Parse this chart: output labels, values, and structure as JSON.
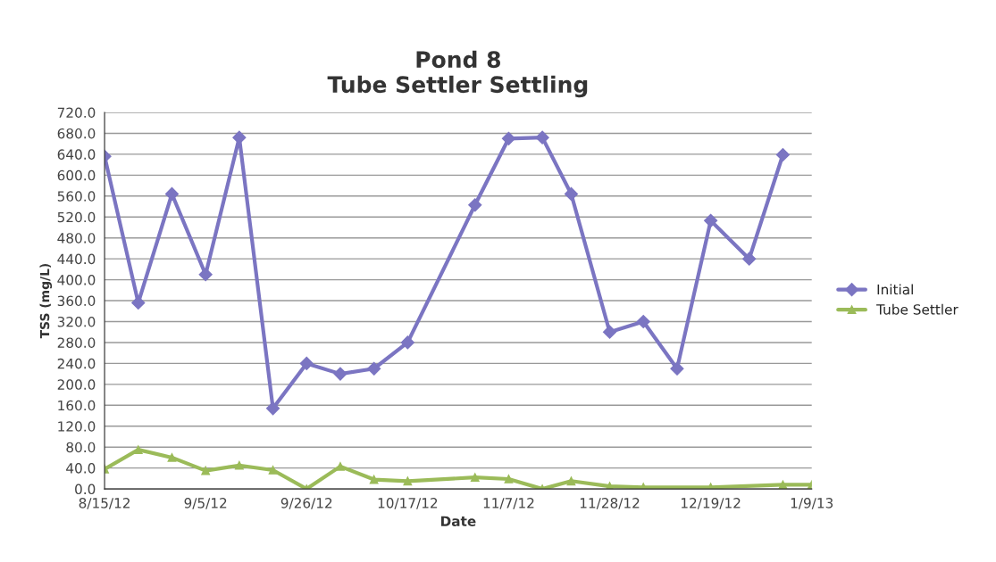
{
  "chart_data": {
    "type": "line",
    "title": "Pond 8\nTube Settler Settling",
    "xlabel": "Date",
    "ylabel": "TSS (mg/L)",
    "series": [
      {
        "name": "Initial",
        "color": "#7b75c2",
        "marker": "diamond",
        "x": [
          "2012-08-15",
          "2012-08-22",
          "2012-08-29",
          "2012-09-05",
          "2012-09-12",
          "2012-09-19",
          "2012-09-26",
          "2012-10-03",
          "2012-10-10",
          "2012-10-17",
          "2012-10-31",
          "2012-11-07",
          "2012-11-14",
          "2012-11-20",
          "2012-11-28",
          "2012-12-05",
          "2012-12-12",
          "2012-12-19",
          "2012-12-27",
          "2013-01-03"
        ],
        "values": [
          636,
          356,
          564,
          410,
          672,
          154,
          240,
          220,
          230,
          280,
          543,
          670,
          672,
          564,
          300,
          320,
          230,
          513,
          440,
          639
        ]
      },
      {
        "name": "Tube Settler",
        "color": "#9bbb59",
        "marker": "triangle",
        "x": [
          "2012-08-15",
          "2012-08-22",
          "2012-08-29",
          "2012-09-05",
          "2012-09-12",
          "2012-09-19",
          "2012-09-26",
          "2012-10-03",
          "2012-10-10",
          "2012-10-17",
          "2012-10-31",
          "2012-11-07",
          "2012-11-14",
          "2012-11-20",
          "2012-11-28",
          "2012-12-05",
          "2012-12-19",
          "2013-01-03",
          "2013-01-09"
        ],
        "values": [
          38,
          75,
          60,
          35,
          45,
          36,
          0,
          43,
          18,
          15,
          22,
          19,
          0,
          15,
          5,
          3,
          3,
          8,
          8
        ]
      }
    ],
    "xlim": [
      "2012-08-15",
      "2013-01-09"
    ],
    "xticks": [
      {
        "value": "2012-08-15",
        "label": "8/15/12"
      },
      {
        "value": "2012-09-05",
        "label": "9/5/12"
      },
      {
        "value": "2012-09-26",
        "label": "9/26/12"
      },
      {
        "value": "2012-10-17",
        "label": "10/17/12"
      },
      {
        "value": "2012-11-07",
        "label": "11/7/12"
      },
      {
        "value": "2012-11-28",
        "label": "11/28/12"
      },
      {
        "value": "2012-12-19",
        "label": "12/19/12"
      },
      {
        "value": "2013-01-09",
        "label": "1/9/13"
      }
    ],
    "ylim": [
      0,
      720
    ],
    "yticks": [
      {
        "value": 0,
        "label": "0.0"
      },
      {
        "value": 40,
        "label": "40.0"
      },
      {
        "value": 80,
        "label": "80.0"
      },
      {
        "value": 120,
        "label": "120.0"
      },
      {
        "value": 160,
        "label": "160.0"
      },
      {
        "value": 200,
        "label": "200.0"
      },
      {
        "value": 240,
        "label": "240.0"
      },
      {
        "value": 280,
        "label": "280.0"
      },
      {
        "value": 320,
        "label": "320.0"
      },
      {
        "value": 360,
        "label": "360.0"
      },
      {
        "value": 400,
        "label": "400.0"
      },
      {
        "value": 440,
        "label": "440.0"
      },
      {
        "value": 480,
        "label": "480.0"
      },
      {
        "value": 520,
        "label": "520.0"
      },
      {
        "value": 560,
        "label": "560.0"
      },
      {
        "value": 600,
        "label": "600.0"
      },
      {
        "value": 640,
        "label": "640.0"
      },
      {
        "value": 680,
        "label": "680.0"
      },
      {
        "value": 720,
        "label": "720.0"
      }
    ],
    "grid": "y",
    "legend": "right",
    "line_style": "solid"
  }
}
